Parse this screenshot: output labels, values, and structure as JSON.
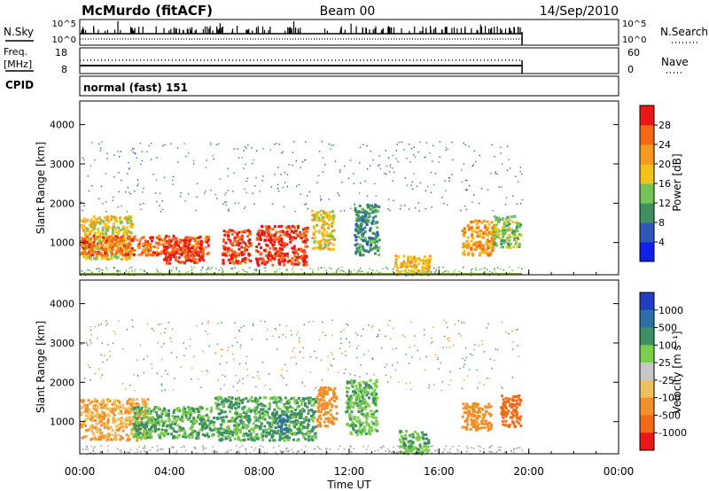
{
  "header": {
    "station": "McMurdo (fitACF)",
    "beam": "Beam 00",
    "date": "14/Sep/2010"
  },
  "left_labels": {
    "nsky": "N.Sky",
    "freq": "Freq.",
    "freq_unit": "[MHz]",
    "cpid": "CPID"
  },
  "right_labels": {
    "nsearch": "N.Search",
    "nave": "Nave"
  },
  "cpid_value": "normal (fast) 151",
  "noise_ticks": [
    "10^5",
    "10^0"
  ],
  "freq_ticks": [
    "18",
    "8"
  ],
  "nave_ticks": [
    "60",
    "0"
  ],
  "x_axis": {
    "label": "Time UT",
    "ticks": [
      "00:00",
      "04:00",
      "08:00",
      "12:00",
      "16:00",
      "20:00",
      "00:00"
    ]
  },
  "range_axis": {
    "label": "Slant Range [km]",
    "ticks": [
      "1000",
      "2000",
      "3000",
      "4000"
    ]
  },
  "power_scale": {
    "label": "Power [dB]",
    "ticks": [
      "4",
      "8",
      "12",
      "16",
      "20",
      "24",
      "28"
    ],
    "colors": [
      "#1020e8",
      "#2f58b8",
      "#3e8f62",
      "#74c45a",
      "#f0c21a",
      "#f59a1e",
      "#f26a18",
      "#e81818"
    ]
  },
  "velocity_scale": {
    "label": "Velocity [m s⁻¹]",
    "ticks": [
      "1000",
      "500",
      "100",
      "25",
      "-25",
      "-100",
      "-500",
      "-1000"
    ],
    "colors": [
      "#1f3fbf",
      "#2f6fa8",
      "#3e8f62",
      "#7ccf4a",
      "#c8c8c8",
      "#f0c060",
      "#f0902a",
      "#f06a18",
      "#e81818"
    ]
  },
  "chart_data": {
    "type": "heatmap",
    "x_range_hours": [
      0,
      24
    ],
    "data_end_hour": 19.7,
    "y_range_km": [
      180,
      4600
    ],
    "panels": [
      {
        "name": "Power",
        "units": "dB",
        "regions": [
          {
            "t": [
              0.0,
              2.3
            ],
            "r": [
              600,
              1700
            ],
            "v": 18
          },
          {
            "t": [
              0.0,
              5.7
            ],
            "r": [
              700,
              1200
            ],
            "v": 26
          },
          {
            "t": [
              3.7,
              5.5
            ],
            "r": [
              500,
              1100
            ],
            "v": 29
          },
          {
            "t": [
              6.3,
              7.6
            ],
            "r": [
              500,
              1350
            ],
            "v": 28
          },
          {
            "t": [
              7.8,
              10.1
            ],
            "r": [
              450,
              1450
            ],
            "v": 29
          },
          {
            "t": [
              10.3,
              11.3
            ],
            "r": [
              850,
              1850
            ],
            "v": 18
          },
          {
            "t": [
              12.2,
              13.3
            ],
            "r": [
              700,
              2000
            ],
            "v": 10
          },
          {
            "t": [
              14.0,
              15.6
            ],
            "r": [
              200,
              700
            ],
            "v": 20
          },
          {
            "t": [
              17.0,
              18.4
            ],
            "r": [
              700,
              1600
            ],
            "v": 22
          },
          {
            "t": [
              18.4,
              19.6
            ],
            "r": [
              900,
              1700
            ],
            "v": 14
          }
        ]
      },
      {
        "name": "Velocity",
        "units": "m s⁻¹",
        "regions": [
          {
            "t": [
              0.0,
              3.0
            ],
            "r": [
              550,
              1600
            ],
            "v": -100
          },
          {
            "t": [
              2.3,
              6.0
            ],
            "r": [
              600,
              1400
            ],
            "v": 100
          },
          {
            "t": [
              6.0,
              10.5
            ],
            "r": [
              550,
              1650
            ],
            "v": 120
          },
          {
            "t": [
              8.8,
              9.2
            ],
            "r": [
              700,
              1200
            ],
            "v": 600
          },
          {
            "t": [
              10.5,
              11.4
            ],
            "r": [
              900,
              1900
            ],
            "v": -300
          },
          {
            "t": [
              11.8,
              13.2
            ],
            "r": [
              700,
              2100
            ],
            "v": 80
          },
          {
            "t": [
              14.2,
              15.5
            ],
            "r": [
              200,
              800
            ],
            "v": 100
          },
          {
            "t": [
              17.0,
              18.3
            ],
            "r": [
              800,
              1500
            ],
            "v": -300
          },
          {
            "t": [
              18.7,
              19.6
            ],
            "r": [
              900,
              1700
            ],
            "v": -700
          }
        ]
      }
    ]
  }
}
